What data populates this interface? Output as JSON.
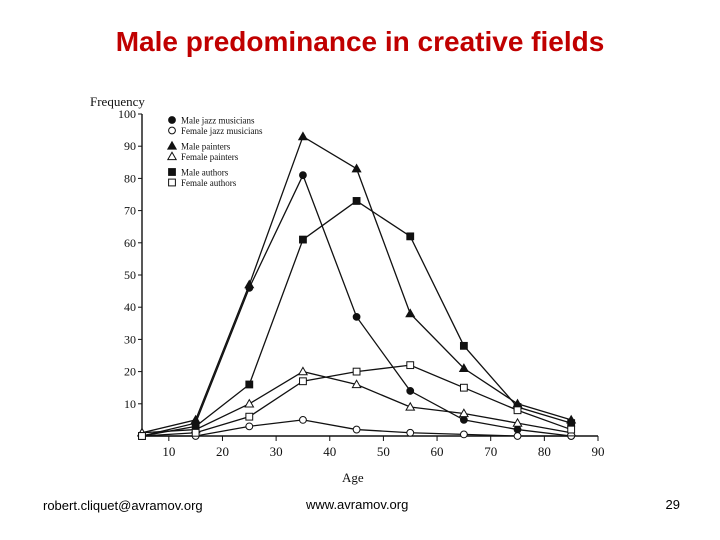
{
  "slide": {
    "title": "Male predominance in creative fields",
    "footer_left": "robert.cliquet@avramov.org",
    "footer_center": "www.avramov.org",
    "page_number": "29"
  },
  "chart_data": {
    "type": "line",
    "title": "",
    "xlabel": "Age",
    "ylabel": "Frequency",
    "xlim": [
      5,
      90
    ],
    "ylim": [
      0,
      100
    ],
    "x_ticks": [
      10,
      20,
      30,
      40,
      50,
      60,
      70,
      80,
      90
    ],
    "y_ticks": [
      10,
      20,
      30,
      40,
      50,
      60,
      70,
      80,
      90,
      100
    ],
    "grid": false,
    "legend_position": "top-left",
    "x": [
      5,
      15,
      25,
      35,
      45,
      55,
      65,
      75,
      85
    ],
    "series": [
      {
        "name": "Male jazz musicians",
        "marker": "circle-filled",
        "values": [
          0,
          4,
          46,
          81,
          37,
          14,
          5,
          2,
          0
        ]
      },
      {
        "name": "Female jazz musicians",
        "marker": "circle-open",
        "values": [
          0,
          0,
          3,
          5,
          2,
          1,
          0.5,
          0,
          0
        ]
      },
      {
        "name": "Male painters",
        "marker": "triangle-filled",
        "values": [
          1,
          5,
          47,
          93,
          83,
          38,
          21,
          10,
          5
        ]
      },
      {
        "name": "Female painters",
        "marker": "triangle-open",
        "values": [
          1,
          2,
          10,
          20,
          16,
          9,
          7,
          4,
          1
        ]
      },
      {
        "name": "Male authors",
        "marker": "square-filled",
        "values": [
          0,
          3,
          16,
          61,
          73,
          62,
          28,
          9,
          4
        ]
      },
      {
        "name": "Female authors",
        "marker": "square-open",
        "values": [
          0,
          1,
          6,
          17,
          20,
          22,
          15,
          8,
          2
        ]
      }
    ]
  }
}
